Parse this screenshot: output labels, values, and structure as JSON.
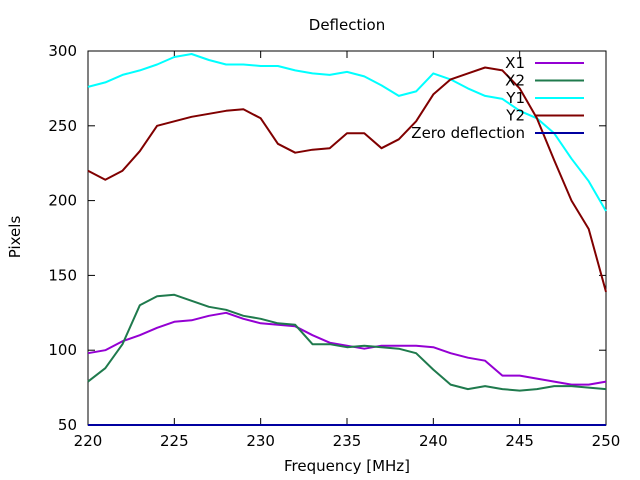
{
  "chart_data": {
    "type": "line",
    "title": "Deflection",
    "xlabel": "Frequency [MHz]",
    "ylabel": "Pixels",
    "xlim": [
      220,
      250
    ],
    "ylim": [
      50,
      300
    ],
    "xticks": [
      220,
      225,
      230,
      235,
      240,
      245,
      250
    ],
    "yticks": [
      50,
      100,
      150,
      200,
      250,
      300
    ],
    "legend_position": "top-right",
    "grid": false,
    "series": [
      {
        "name": "X1",
        "color": "#9400d3",
        "x": [
          220,
          221,
          222,
          223,
          224,
          225,
          226,
          227,
          228,
          229,
          230,
          231,
          232,
          233,
          234,
          235,
          236,
          237,
          238,
          239,
          240,
          241,
          242,
          243,
          244,
          245,
          246,
          247,
          248,
          249,
          250
        ],
        "y": [
          98,
          100,
          106,
          110,
          115,
          119,
          120,
          123,
          125,
          121,
          118,
          117,
          116,
          110,
          105,
          103,
          101,
          103,
          103,
          103,
          102,
          98,
          95,
          93,
          83,
          83,
          81,
          79,
          77,
          77,
          79
        ]
      },
      {
        "name": "X2",
        "color": "#1f7a4d",
        "x": [
          220,
          221,
          222,
          223,
          224,
          225,
          226,
          227,
          228,
          229,
          230,
          231,
          232,
          233,
          234,
          235,
          236,
          237,
          238,
          239,
          240,
          241,
          242,
          243,
          244,
          245,
          246,
          247,
          248,
          249,
          250
        ],
        "y": [
          79,
          88,
          104,
          130,
          136,
          137,
          133,
          129,
          127,
          123,
          121,
          118,
          117,
          104,
          104,
          102,
          103,
          102,
          101,
          98,
          87,
          77,
          74,
          76,
          74,
          73,
          74,
          76,
          76,
          75,
          74
        ]
      },
      {
        "name": "Y1",
        "color": "#00ffff",
        "x": [
          220,
          221,
          222,
          223,
          224,
          225,
          226,
          227,
          228,
          229,
          230,
          231,
          232,
          233,
          234,
          235,
          236,
          237,
          238,
          239,
          240,
          241,
          242,
          243,
          244,
          245,
          246,
          247,
          248,
          249,
          250
        ],
        "y": [
          276,
          279,
          284,
          287,
          291,
          296,
          298,
          294,
          291,
          291,
          290,
          290,
          287,
          285,
          284,
          286,
          283,
          277,
          270,
          273,
          285,
          281,
          275,
          270,
          268,
          260,
          255,
          245,
          228,
          213,
          193
        ]
      },
      {
        "name": "Y2",
        "color": "#800000",
        "x": [
          220,
          221,
          222,
          223,
          224,
          225,
          226,
          227,
          228,
          229,
          230,
          231,
          232,
          233,
          234,
          235,
          236,
          237,
          238,
          239,
          240,
          241,
          242,
          243,
          244,
          245,
          246,
          247,
          248,
          249,
          250
        ],
        "y": [
          220,
          214,
          220,
          233,
          250,
          253,
          256,
          258,
          260,
          261,
          255,
          238,
          232,
          234,
          235,
          245,
          245,
          235,
          241,
          253,
          271,
          281,
          285,
          289,
          287,
          275,
          255,
          227,
          200,
          181,
          139
        ]
      },
      {
        "name": "Zero deflection",
        "color": "#0000a0",
        "x": [
          220,
          250
        ],
        "y": [
          50,
          50
        ]
      }
    ]
  }
}
